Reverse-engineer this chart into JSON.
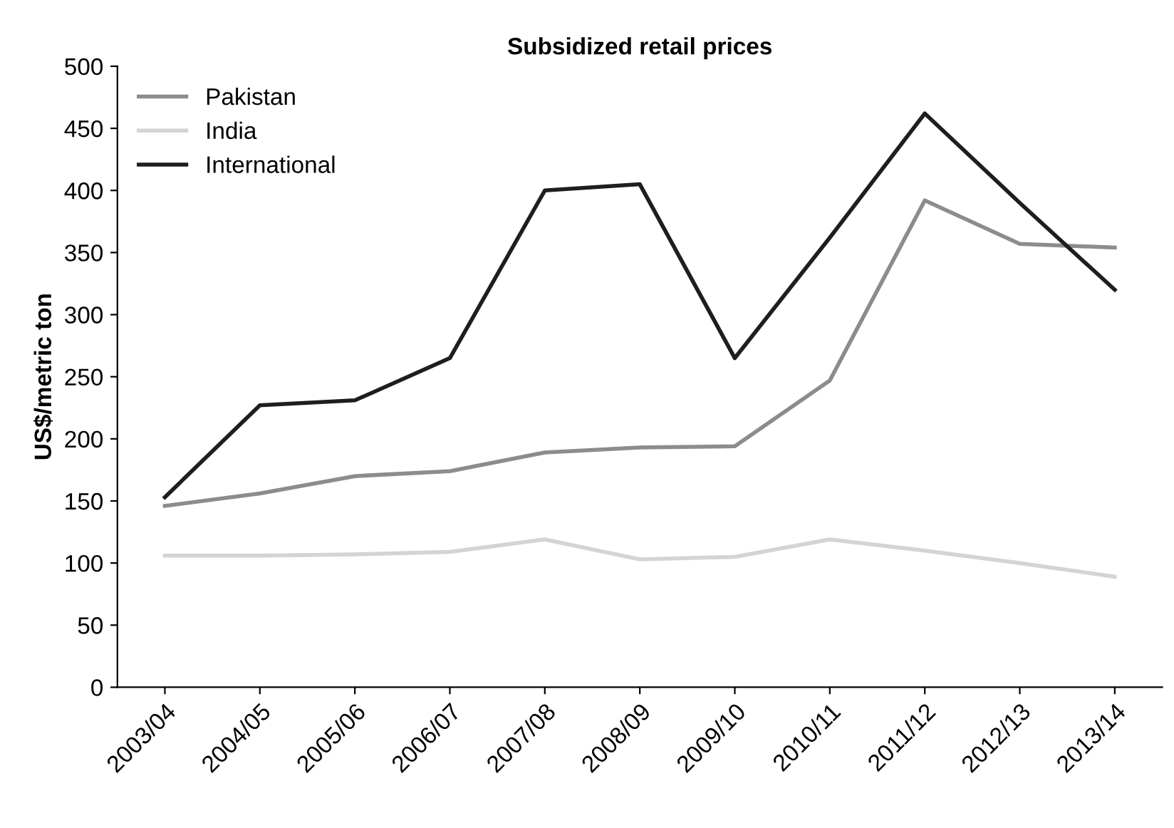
{
  "chart_data": {
    "type": "line",
    "title": "Subsidized retail prices",
    "ylabel": "US$/metric ton",
    "categories": [
      "2003/04",
      "2004/05",
      "2005/06",
      "2006/07",
      "2007/08",
      "2008/09",
      "2009/10",
      "2010/11",
      "2011/12",
      "2012/13",
      "2013/14"
    ],
    "series": [
      {
        "name": "Pakistan",
        "color": "#8c8c8c",
        "values": [
          146,
          156,
          170,
          174,
          189,
          193,
          194,
          247,
          392,
          357,
          354
        ]
      },
      {
        "name": "India",
        "color": "#d4d4d4",
        "values": [
          106,
          106,
          107,
          109,
          119,
          103,
          105,
          119,
          110,
          100,
          89
        ]
      },
      {
        "name": "International",
        "color": "#1e1e1e",
        "values": [
          153,
          227,
          231,
          265,
          400,
          405,
          265,
          362,
          462,
          390,
          320
        ]
      }
    ],
    "ylim": [
      0,
      500
    ],
    "yticks": [
      0,
      50,
      100,
      150,
      200,
      250,
      300,
      350,
      400,
      450,
      500
    ],
    "grid": false,
    "legend": "top left"
  }
}
